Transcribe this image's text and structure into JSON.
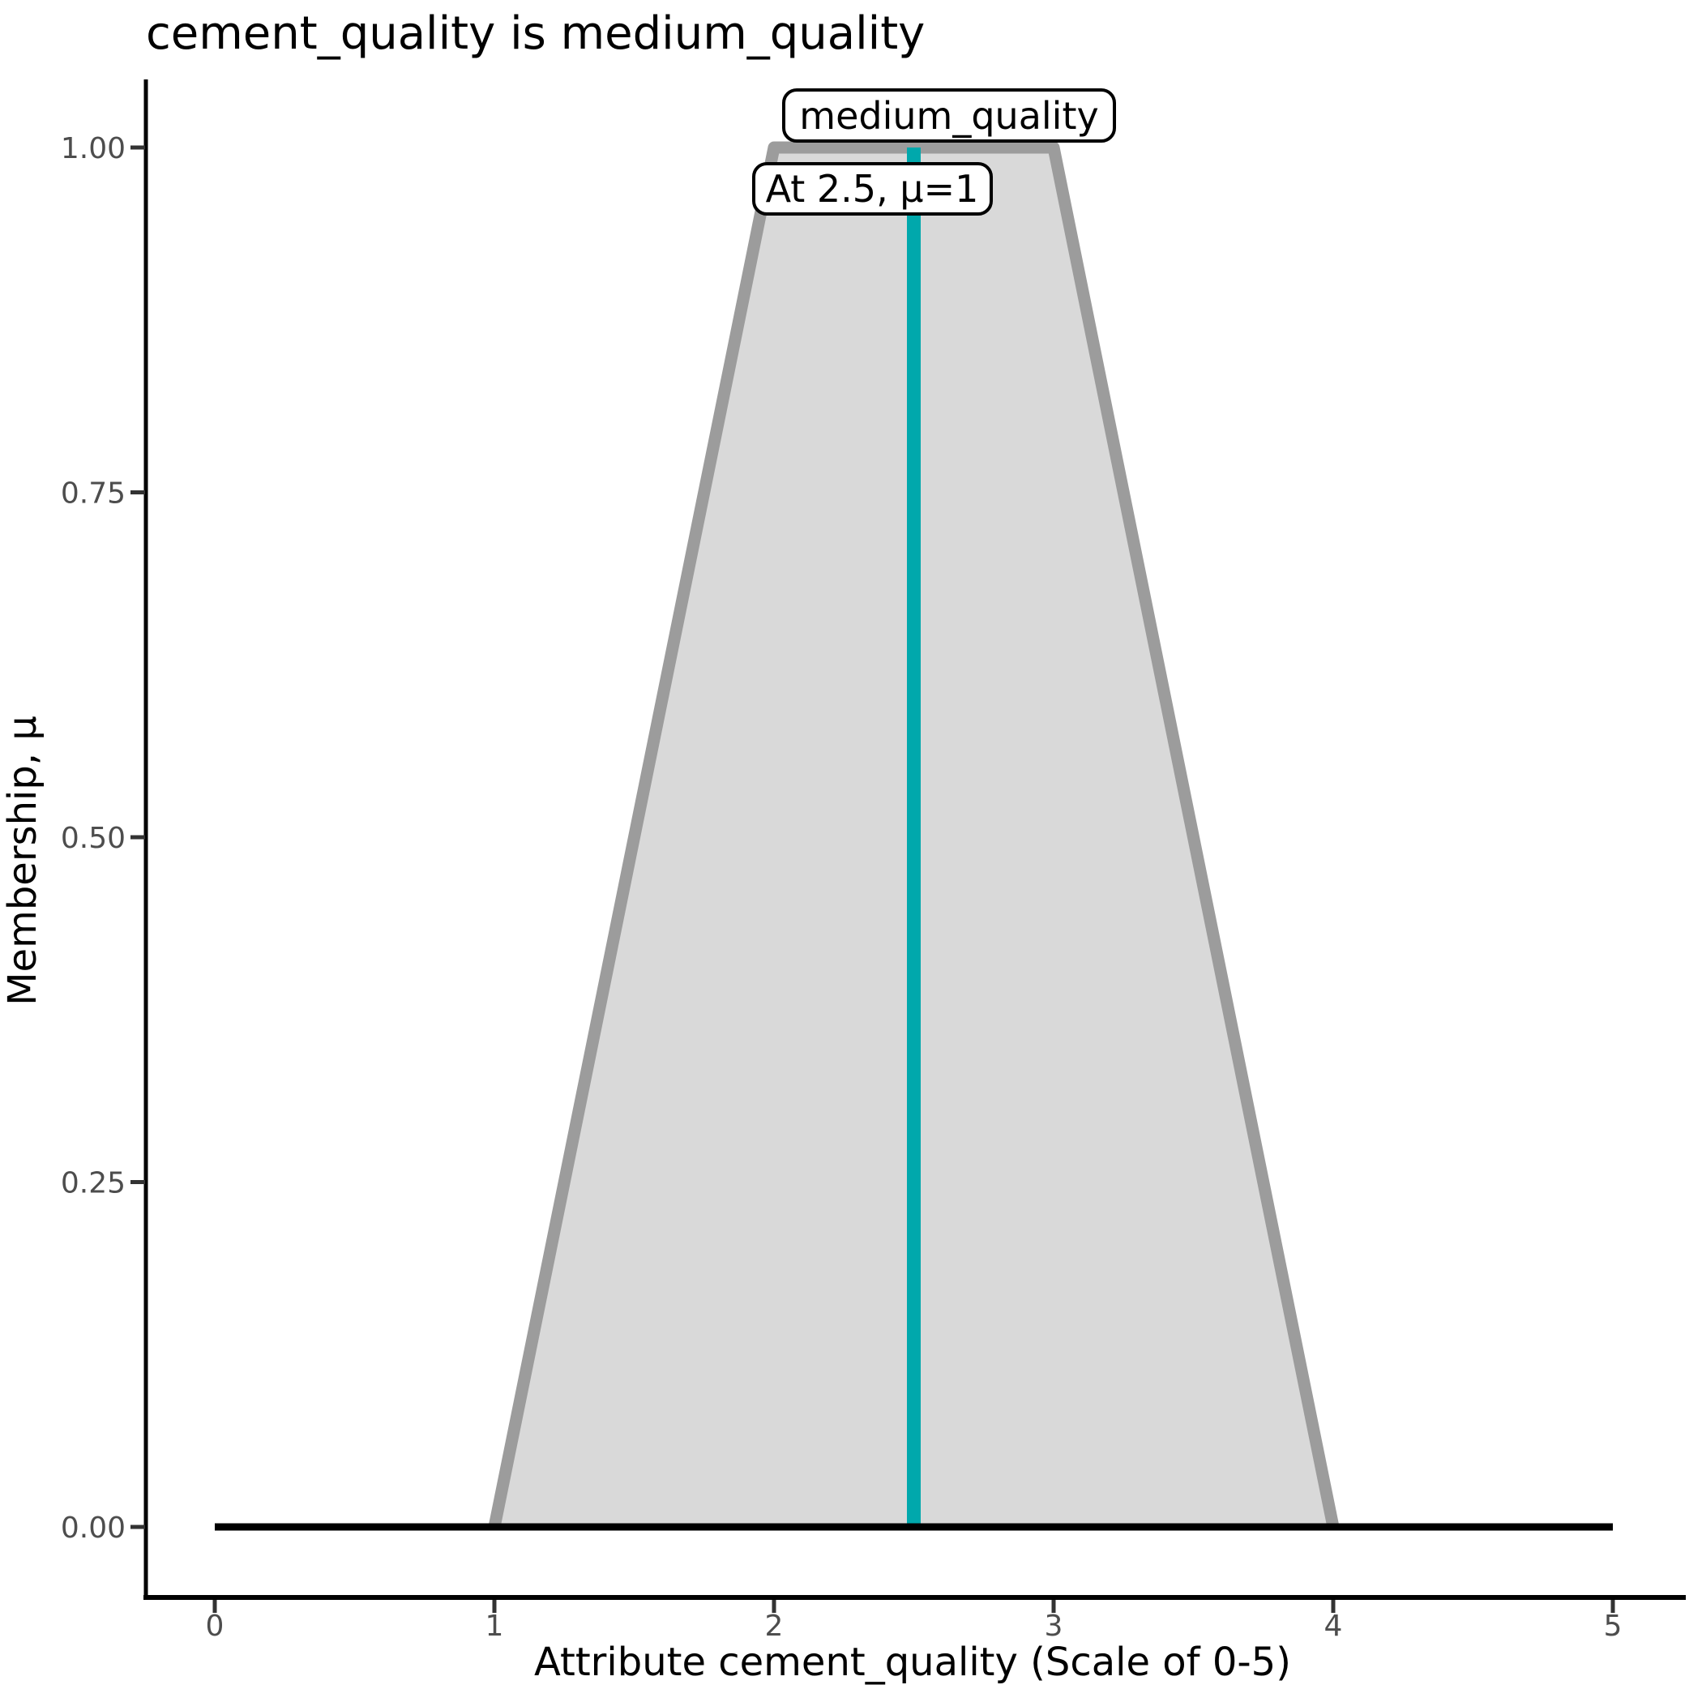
{
  "title": "cement_quality is medium_quality",
  "axes": {
    "x": {
      "title": "Attribute cement_quality (Scale of 0-5)",
      "tick_labels": [
        "0",
        "1",
        "2",
        "3",
        "4",
        "5"
      ]
    },
    "y": {
      "title": "Membership, μ",
      "tick_labels": [
        "0.00",
        "0.25",
        "0.50",
        "0.75",
        "1.00"
      ]
    }
  },
  "labels": {
    "set_name": "medium_quality",
    "point_readout": "At 2.5, μ=1"
  },
  "colors": {
    "area_fill": "#d9d9d9",
    "area_stroke": "#9c9c9c",
    "marker_line": "#00a8ac",
    "baseline": "#000000",
    "axis_line": "#000000",
    "tick_mark": "#333333",
    "tick_label": "#4d4d4d",
    "label_box_bg": "#ffffff",
    "label_box_border": "#000000"
  },
  "chart_data": {
    "type": "area",
    "subtype": "trapezoidal fuzzy membership function",
    "title": "cement_quality is medium_quality",
    "xlabel": "Attribute cement_quality (Scale of 0-5)",
    "ylabel": "Membership, μ",
    "xlim": [
      0,
      5
    ],
    "ylim": [
      0,
      1
    ],
    "x_ticks": [
      0,
      1,
      2,
      3,
      4,
      5
    ],
    "y_ticks": [
      0,
      0.25,
      0.5,
      0.75,
      1
    ],
    "grid": false,
    "legend": "none",
    "series": [
      {
        "name": "medium_quality",
        "kind": "trapezoid-membership",
        "points": [
          [
            0,
            0
          ],
          [
            1,
            0
          ],
          [
            2,
            1
          ],
          [
            3,
            1
          ],
          [
            4,
            0
          ],
          [
            5,
            0
          ]
        ],
        "trapezoid": [
          [
            1,
            0
          ],
          [
            2,
            1
          ],
          [
            3,
            1
          ],
          [
            4,
            0
          ]
        ],
        "fill": "#d9d9d9",
        "stroke": "#9c9c9c"
      }
    ],
    "baseline": {
      "y": 0,
      "x_from": 0,
      "x_to": 5
    },
    "marker": {
      "x": 2.5,
      "mu": 1,
      "color": "#00a8ac",
      "label": "At 2.5, μ=1"
    },
    "annotations": [
      "medium_quality",
      "At 2.5, μ=1"
    ]
  }
}
